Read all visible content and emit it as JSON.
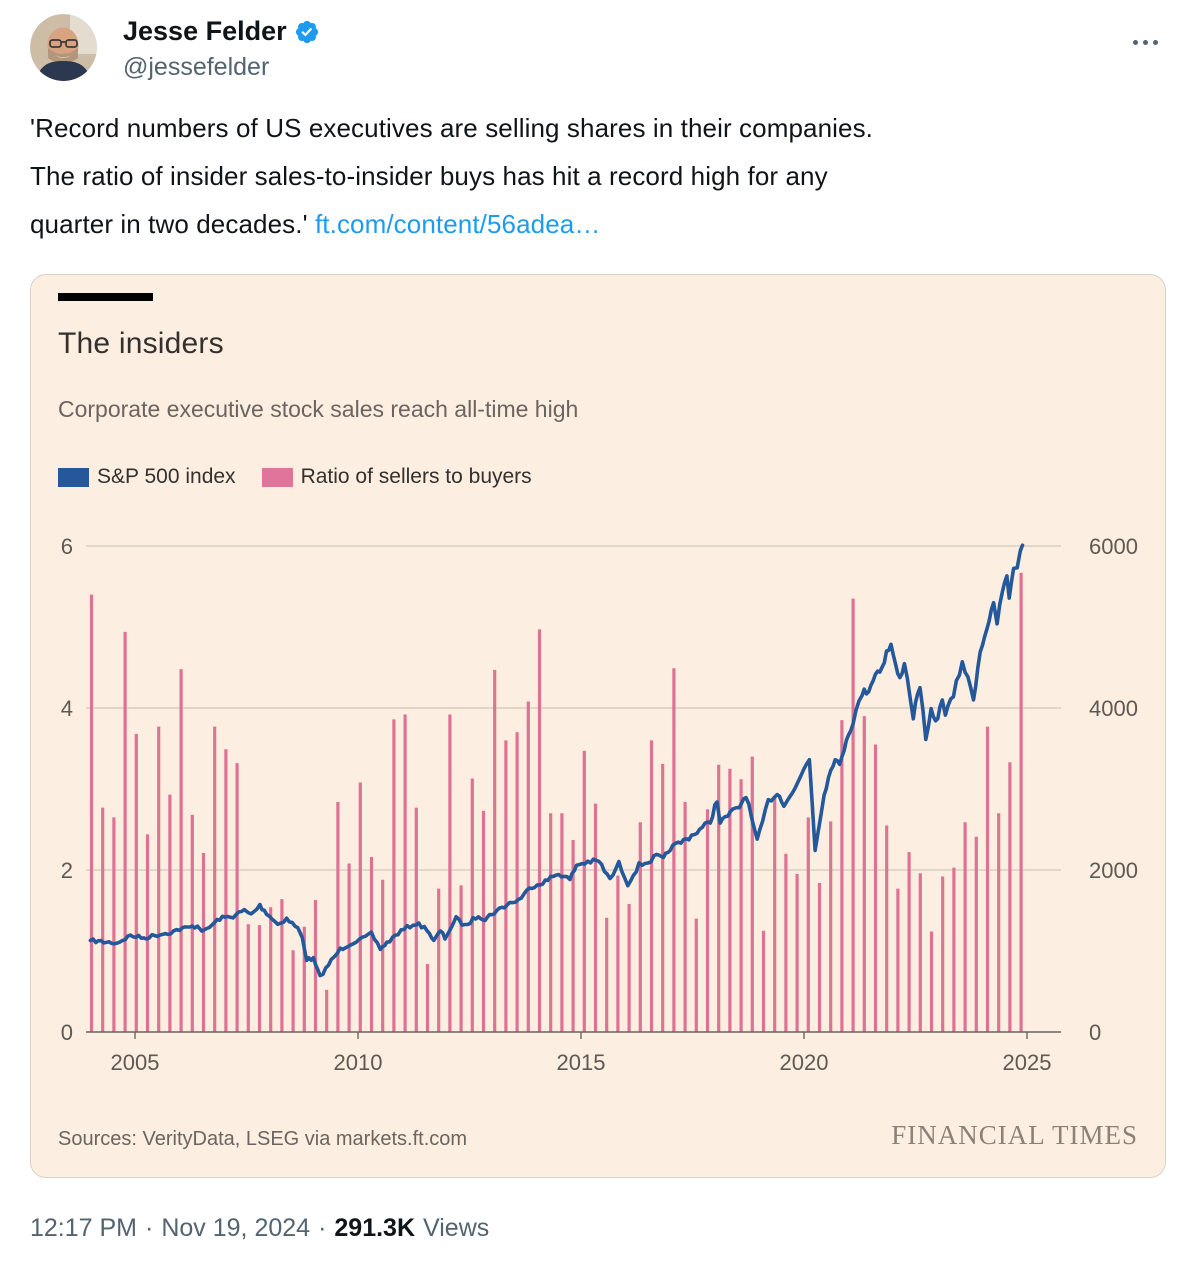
{
  "tweet": {
    "author": {
      "name": "Jesse Felder",
      "handle": "@jessefelder",
      "badge": "verified-badge"
    },
    "more_label": "More",
    "text_lines": [
      "'Record numbers of US executives are selling shares in their companies.",
      "The ratio of insider sales-to-insider buys has hit a record high for any",
      "quarter in two decades.' "
    ],
    "link_text": "ft.com/content/56adea…",
    "footer": {
      "time": "12:17 PM",
      "sep": "·",
      "date": "Nov 19, 2024",
      "views_count": "291.3K",
      "views_label": "Views"
    }
  },
  "chart_card": {
    "title": "The insiders",
    "subtitle": "Corporate executive stock sales reach all-time high",
    "legend": [
      {
        "label": "S&P 500 index",
        "color": "#24589b"
      },
      {
        "label": "Ratio of sellers to buyers",
        "color": "#e0759b"
      }
    ],
    "sources": "Sources: VerityData, LSEG via markets.ft.com",
    "brand": "FINANCIAL TIMES"
  },
  "chart_data": {
    "type": "bar+line (dual axis)",
    "title": "The insiders",
    "subtitle": "Corporate executive stock sales reach all-time high",
    "grid": true,
    "legend_position": "top",
    "left_axis": {
      "label": "Ratio of sellers to buyers",
      "ticks": [
        0,
        2,
        4,
        6
      ],
      "range": [
        0,
        6
      ]
    },
    "right_axis": {
      "label": "S&P 500 index",
      "ticks": [
        0,
        2000,
        4000,
        6000
      ],
      "range": [
        0,
        6000
      ]
    },
    "x_axis": {
      "ticks": [
        2005,
        2010,
        2015,
        2020,
        2025
      ],
      "range": [
        2004,
        2025.3
      ]
    },
    "bar_series": {
      "name": "Ratio of sellers to buyers",
      "color": "#de7294",
      "start_year": 2004,
      "period": "quarterly",
      "values": [
        5.4,
        2.77,
        2.65,
        4.94,
        3.68,
        2.44,
        3.77,
        2.93,
        4.48,
        2.68,
        2.21,
        3.77,
        3.49,
        3.32,
        1.33,
        1.32,
        1.54,
        1.64,
        1.01,
        1.3,
        1.63,
        0.52,
        2.84,
        2.08,
        3.08,
        2.16,
        1.88,
        3.86,
        3.92,
        2.77,
        0.84,
        1.77,
        3.92,
        1.81,
        3.13,
        2.73,
        4.47,
        3.6,
        3.7,
        4.08,
        4.97,
        2.7,
        2.7,
        2.37,
        3.47,
        2.82,
        1.41,
        1.93,
        1.58,
        2.59,
        3.6,
        3.31,
        4.49,
        2.84,
        1.4,
        2.75,
        3.3,
        3.25,
        3.12,
        3.4,
        1.25,
        2.9,
        2.2,
        1.95,
        2.65,
        1.84,
        2.6,
        3.85,
        5.35,
        3.9,
        3.55,
        2.55,
        1.77,
        2.22,
        1.96,
        1.24,
        1.92,
        2.03,
        2.59,
        2.41,
        3.77,
        2.7,
        3.33,
        5.67
      ]
    },
    "line_series": {
      "name": "S&P 500 index",
      "color": "#24589b",
      "points": [
        [
          2004.0,
          1130
        ],
        [
          2004.3,
          1110
        ],
        [
          2004.6,
          1100
        ],
        [
          2004.9,
          1190
        ],
        [
          2005.2,
          1160
        ],
        [
          2005.5,
          1200
        ],
        [
          2005.8,
          1230
        ],
        [
          2006.0,
          1270
        ],
        [
          2006.4,
          1310
        ],
        [
          2006.55,
          1240
        ],
        [
          2006.9,
          1400
        ],
        [
          2007.2,
          1430
        ],
        [
          2007.45,
          1500
        ],
        [
          2007.6,
          1450
        ],
        [
          2007.8,
          1560
        ],
        [
          2007.95,
          1470
        ],
        [
          2008.2,
          1330
        ],
        [
          2008.4,
          1400
        ],
        [
          2008.65,
          1280
        ],
        [
          2008.75,
          1160
        ],
        [
          2008.85,
          900
        ],
        [
          2009.0,
          900
        ],
        [
          2009.15,
          680
        ],
        [
          2009.4,
          880
        ],
        [
          2009.6,
          1020
        ],
        [
          2009.9,
          1110
        ],
        [
          2010.1,
          1150
        ],
        [
          2010.3,
          1210
        ],
        [
          2010.5,
          1030
        ],
        [
          2010.65,
          1100
        ],
        [
          2010.9,
          1220
        ],
        [
          2011.1,
          1290
        ],
        [
          2011.3,
          1340
        ],
        [
          2011.55,
          1270
        ],
        [
          2011.7,
          1120
        ],
        [
          2011.85,
          1250
        ],
        [
          2011.95,
          1160
        ],
        [
          2012.2,
          1400
        ],
        [
          2012.4,
          1310
        ],
        [
          2012.7,
          1440
        ],
        [
          2012.85,
          1390
        ],
        [
          2013.0,
          1460
        ],
        [
          2013.4,
          1590
        ],
        [
          2013.6,
          1630
        ],
        [
          2013.9,
          1800
        ],
        [
          2014.2,
          1860
        ],
        [
          2014.5,
          1960
        ],
        [
          2014.75,
          1880
        ],
        [
          2014.9,
          2060
        ],
        [
          2015.15,
          2100
        ],
        [
          2015.4,
          2110
        ],
        [
          2015.65,
          1880
        ],
        [
          2015.85,
          2080
        ],
        [
          2016.05,
          1830
        ],
        [
          2016.3,
          2060
        ],
        [
          2016.5,
          2100
        ],
        [
          2016.7,
          2170
        ],
        [
          2016.85,
          2130
        ],
        [
          2017.0,
          2270
        ],
        [
          2017.3,
          2360
        ],
        [
          2017.6,
          2470
        ],
        [
          2017.9,
          2600
        ],
        [
          2018.05,
          2870
        ],
        [
          2018.12,
          2580
        ],
        [
          2018.35,
          2700
        ],
        [
          2018.55,
          2780
        ],
        [
          2018.7,
          2930
        ],
        [
          2018.95,
          2350
        ],
        [
          2019.2,
          2850
        ],
        [
          2019.4,
          2950
        ],
        [
          2019.55,
          2820
        ],
        [
          2019.8,
          3000
        ],
        [
          2020.0,
          3250
        ],
        [
          2020.12,
          3380
        ],
        [
          2020.25,
          2250
        ],
        [
          2020.45,
          2950
        ],
        [
          2020.6,
          3230
        ],
        [
          2020.7,
          3400
        ],
        [
          2020.8,
          3270
        ],
        [
          2020.95,
          3620
        ],
        [
          2021.1,
          3830
        ],
        [
          2021.3,
          4180
        ],
        [
          2021.45,
          4230
        ],
        [
          2021.6,
          4420
        ],
        [
          2021.75,
          4510
        ],
        [
          2021.85,
          4680
        ],
        [
          2021.95,
          4780
        ],
        [
          2022.05,
          4520
        ],
        [
          2022.15,
          4350
        ],
        [
          2022.25,
          4580
        ],
        [
          2022.45,
          3900
        ],
        [
          2022.6,
          4290
        ],
        [
          2022.73,
          3580
        ],
        [
          2022.85,
          3950
        ],
        [
          2023.0,
          3840
        ],
        [
          2023.1,
          4140
        ],
        [
          2023.17,
          3930
        ],
        [
          2023.35,
          4150
        ],
        [
          2023.55,
          4580
        ],
        [
          2023.8,
          4120
        ],
        [
          2023.95,
          4700
        ],
        [
          2024.1,
          5000
        ],
        [
          2024.25,
          5250
        ],
        [
          2024.33,
          5050
        ],
        [
          2024.45,
          5450
        ],
        [
          2024.55,
          5600
        ],
        [
          2024.6,
          5370
        ],
        [
          2024.7,
          5760
        ],
        [
          2024.78,
          5700
        ],
        [
          2024.85,
          5990
        ],
        [
          2024.9,
          6010
        ]
      ]
    }
  }
}
